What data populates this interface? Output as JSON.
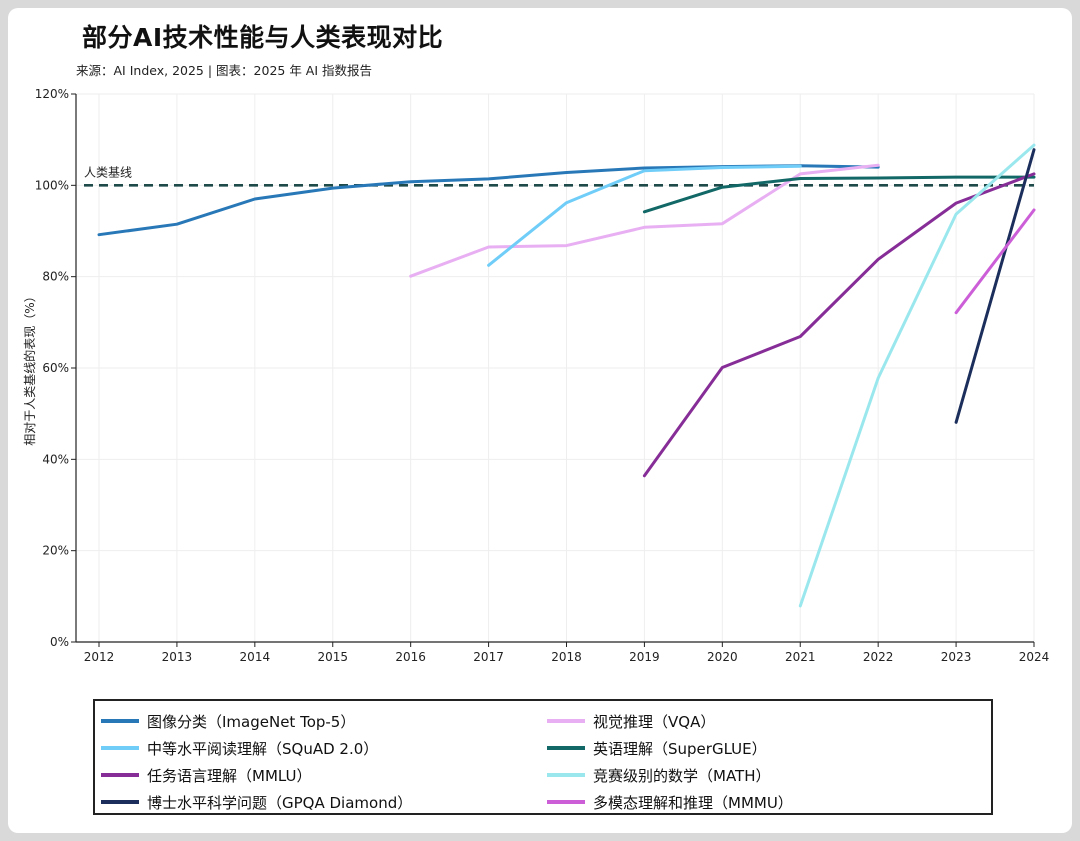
{
  "title": "部分AI技术性能与人类表现对比",
  "subtitle": "来源：AI Index, 2025 | 图表：2025 年 AI 指数报告",
  "chart_data": {
    "type": "line",
    "ylabel": "相对于人类基线的表现（%）",
    "xlabel": "",
    "ylim": [
      0,
      120
    ],
    "xlim": [
      2012,
      2024
    ],
    "x_ticks": [
      "2012",
      "2013",
      "2014",
      "2015",
      "2016",
      "2017",
      "2018",
      "2019",
      "2020",
      "2021",
      "2022",
      "2023",
      "2024"
    ],
    "y_ticks": [
      0,
      20,
      40,
      60,
      80,
      100,
      120
    ],
    "y_tick_labels": [
      "0%",
      "20%",
      "40%",
      "60%",
      "80%",
      "100%",
      "120%"
    ],
    "grid": true,
    "legend_position": "bottom",
    "baseline": {
      "label": "人类基线",
      "value": 100,
      "color": "#1f4a4a",
      "style": "dashed"
    },
    "series": [
      {
        "name": "图像分类（ImageNet Top-5）",
        "color": "#2878b8",
        "points": [
          [
            2012,
            89.2
          ],
          [
            2013,
            91.5
          ],
          [
            2014,
            97.0
          ],
          [
            2015,
            99.4
          ],
          [
            2016,
            100.8
          ],
          [
            2017,
            101.4
          ],
          [
            2018,
            102.8
          ],
          [
            2019,
            103.8
          ],
          [
            2020,
            104.1
          ],
          [
            2021,
            104.3
          ],
          [
            2022,
            104.0
          ]
        ]
      },
      {
        "name": "视觉推理（VQA）",
        "color": "#e8b0f2",
        "points": [
          [
            2016,
            80.1
          ],
          [
            2017,
            86.5
          ],
          [
            2018,
            86.8
          ],
          [
            2019,
            90.8
          ],
          [
            2020,
            91.6
          ],
          [
            2021,
            102.5
          ],
          [
            2022,
            104.4
          ]
        ]
      },
      {
        "name": "中等水平阅读理解（SQuAD 2.0）",
        "color": "#6fcdf8",
        "points": [
          [
            2017,
            82.5
          ],
          [
            2018,
            96.2
          ],
          [
            2019,
            103.2
          ],
          [
            2020,
            103.9
          ],
          [
            2021,
            104.2
          ]
        ]
      },
      {
        "name": "英语理解（SuperGLUE）",
        "color": "#126866",
        "points": [
          [
            2019,
            94.2
          ],
          [
            2020,
            99.6
          ],
          [
            2021,
            101.5
          ],
          [
            2022,
            101.6
          ],
          [
            2023,
            101.8
          ],
          [
            2024,
            101.8
          ]
        ]
      },
      {
        "name": "任务语言理解（MMLU）",
        "color": "#872d97",
        "points": [
          [
            2019,
            36.4
          ],
          [
            2020,
            60.1
          ],
          [
            2021,
            66.9
          ],
          [
            2022,
            83.8
          ],
          [
            2023,
            96.1
          ],
          [
            2024,
            102.5
          ]
        ]
      },
      {
        "name": "竞赛级别的数学（MATH）",
        "color": "#9ae8ee",
        "points": [
          [
            2021,
            7.9
          ],
          [
            2022,
            57.8
          ],
          [
            2023,
            93.7
          ],
          [
            2024,
            108.8
          ]
        ]
      },
      {
        "name": "博士水平科学问题（GPQA Diamond）",
        "color": "#1c2f5c",
        "points": [
          [
            2023,
            48.1
          ],
          [
            2024,
            107.8
          ]
        ]
      },
      {
        "name": "多模态理解和推理（MMMU）",
        "color": "#cc5fd8",
        "points": [
          [
            2023,
            72.1
          ],
          [
            2024,
            94.6
          ]
        ]
      }
    ],
    "legend_order": [
      0,
      1,
      2,
      3,
      4,
      5,
      6,
      7
    ]
  }
}
